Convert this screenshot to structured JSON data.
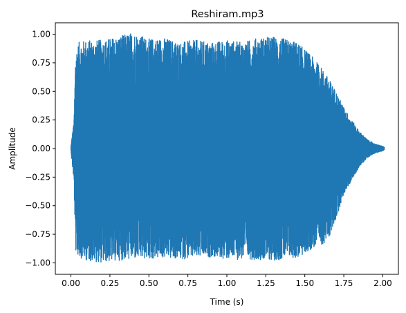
{
  "chart_data": {
    "type": "line",
    "title": "Reshiram.mp3",
    "xlabel": "Time (s)",
    "ylabel": "Amplitude",
    "xlim": [
      -0.1,
      2.1
    ],
    "ylim": [
      -1.1,
      1.1
    ],
    "x_ticks": [
      0.0,
      0.25,
      0.5,
      0.75,
      1.0,
      1.25,
      1.5,
      1.75,
      2.0
    ],
    "x_tick_labels": [
      "0.00",
      "0.25",
      "0.50",
      "0.75",
      "1.00",
      "1.25",
      "1.50",
      "1.75",
      "2.00"
    ],
    "y_ticks": [
      1.0,
      0.75,
      0.5,
      0.25,
      0.0,
      -0.25,
      -0.5,
      -0.75,
      -1.0
    ],
    "y_tick_labels": [
      "1.00",
      "0.75",
      "0.50",
      "0.25",
      "0.00",
      "−0.25",
      "−0.50",
      "−0.75",
      "−1.00"
    ],
    "series_color": "#1f77b4",
    "grid": false,
    "legend": "none",
    "duration_s": 2.01,
    "envelope": {
      "t": [
        0.0,
        0.02,
        0.03,
        0.05,
        0.1,
        0.2,
        0.3,
        0.4,
        0.5,
        0.6,
        0.7,
        0.8,
        0.9,
        1.0,
        1.1,
        1.2,
        1.3,
        1.4,
        1.45,
        1.5,
        1.55,
        1.6,
        1.65,
        1.7,
        1.75,
        1.8,
        1.85,
        1.9,
        1.95,
        2.0,
        2.01
      ],
      "upper": [
        0.02,
        0.25,
        0.85,
        0.93,
        0.95,
        0.95,
        0.98,
        1.02,
        0.96,
        0.97,
        0.93,
        0.95,
        0.93,
        0.95,
        0.93,
        0.97,
        0.98,
        0.95,
        0.93,
        0.87,
        0.8,
        0.72,
        0.62,
        0.5,
        0.36,
        0.25,
        0.15,
        0.08,
        0.04,
        0.02,
        0.01
      ],
      "lower": [
        -0.02,
        -0.3,
        -0.9,
        -0.95,
        -0.98,
        -1.0,
        -0.98,
        -0.97,
        -0.97,
        -0.96,
        -0.97,
        -0.96,
        -0.95,
        -0.97,
        -0.97,
        -0.97,
        -0.98,
        -0.96,
        -0.96,
        -0.93,
        -0.87,
        -0.85,
        -0.8,
        -0.62,
        -0.4,
        -0.28,
        -0.16,
        -0.08,
        -0.04,
        -0.02,
        -0.01
      ]
    }
  }
}
